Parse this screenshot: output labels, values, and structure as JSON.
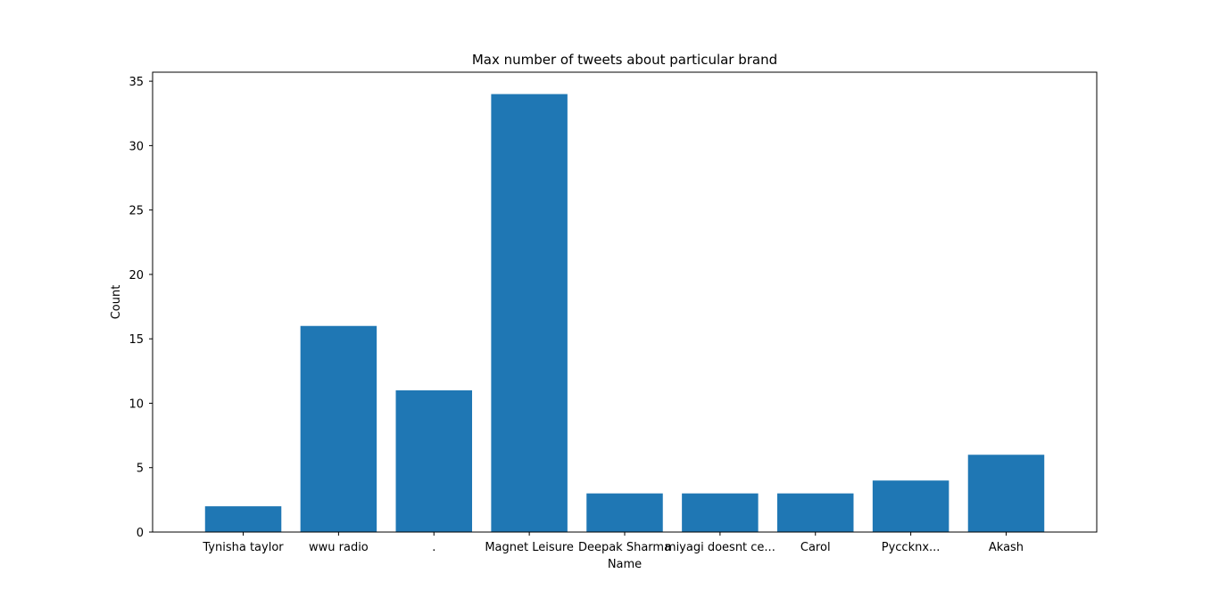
{
  "chart_data": {
    "type": "bar",
    "title": "Max number of tweets about particular brand",
    "xlabel": "Name",
    "ylabel": "Count",
    "categories": [
      "Tynisha taylor",
      "wwu radio",
      ".",
      "Magnet Leisure",
      "Deepak Sharma",
      "miyagi doesnt ce...",
      "Carol",
      "Pyccknx...",
      "Akash"
    ],
    "values": [
      2,
      16,
      11,
      34,
      3,
      3,
      3,
      4,
      6
    ],
    "ylim": [
      0,
      35.7
    ],
    "yticks": [
      0,
      5,
      10,
      15,
      20,
      25,
      30,
      35
    ],
    "bar_color": "#1f77b4",
    "grid": false
  }
}
